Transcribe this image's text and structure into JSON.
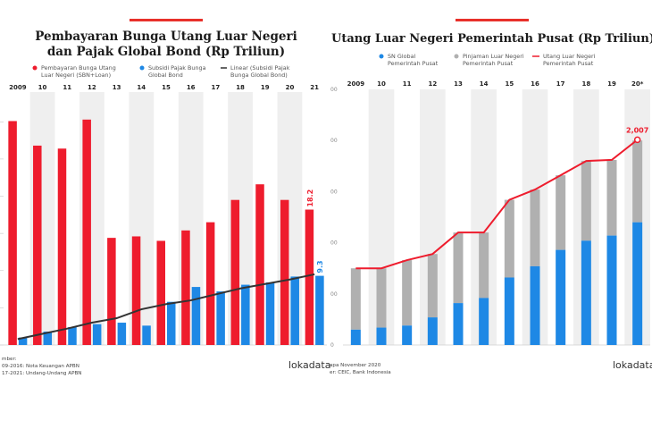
{
  "colors": {
    "red": "#ee1c2d",
    "blue": "#1e88e5",
    "gray": "#b0b0b0",
    "dark": "#333333",
    "band": "#efefef",
    "accent": "#e8302a"
  },
  "left": {
    "title_line1": "Pembayaran Bunga Utang Luar Negeri",
    "title_line2": "dan Pajak Global Bond (Rp Triliun)",
    "legend": [
      {
        "l1": "Pembayaran Bunga Utang",
        "l2": "Luar Negeri (SBN+Loan)",
        "icon": "red-dot-icon"
      },
      {
        "l1": "Subsidi Pajak Bunga",
        "l2": "Global Bond",
        "icon": "blue-dot-icon"
      },
      {
        "l1": "Linear (Subsidi Pajak",
        "l2": "Bunga Global Bond)",
        "icon": "line-icon"
      }
    ],
    "source_lines": [
      "mber:",
      "09-2016: Nota Keuangan APBN",
      "17-2021: Undang-Undang APBN"
    ],
    "logo": "lokadata",
    "end_label_red": "18.2",
    "end_label_blue": "9.3"
  },
  "right": {
    "title": "Utang Luar Negeri Pemerintah Pusat (Rp Triliun)",
    "legend": [
      {
        "l1": "SN Global",
        "l2": "Pemerintah Pusat",
        "icon": "blue-dot-icon"
      },
      {
        "l1": "Pinjaman Luar Negeri",
        "l2": "Pemerintah Pusat",
        "icon": "gray-dot-icon"
      },
      {
        "l1": "Utang Luar Negeri",
        "l2": "Pemerintah Pusat",
        "icon": "red-line-icon"
      }
    ],
    "source_lines": [
      "apa November 2020",
      "er: CEIC, Bank Indonesia"
    ],
    "logo": "lokadata",
    "end_label": "2,007",
    "y_ticks": [
      "00",
      "00",
      "00",
      "00",
      "00",
      "0"
    ]
  },
  "chart_data": [
    {
      "type": "bar",
      "title": "Pembayaran Bunga Utang Luar Negeri dan Pajak Global Bond (Rp Triliun)",
      "categories": [
        "2009",
        "10",
        "11",
        "12",
        "13",
        "14",
        "15",
        "16",
        "17",
        "18",
        "19",
        "20",
        "21"
      ],
      "ylim": [
        0,
        34
      ],
      "series": [
        {
          "name": "Pembayaran Bunga Utang Luar Negeri (SBN+Loan)",
          "values": [
            30.1,
            26.8,
            26.4,
            30.3,
            14.4,
            14.6,
            14.0,
            15.4,
            16.5,
            19.5,
            21.6,
            19.5,
            18.2
          ]
        },
        {
          "name": "Subsidi Pajak Bunga Global Bond",
          "values": [
            1.0,
            1.8,
            2.4,
            2.8,
            3.0,
            2.6,
            5.8,
            7.8,
            7.2,
            8.1,
            8.4,
            9.2,
            9.3
          ]
        },
        {
          "name": "Linear (Subsidi Pajak Bunga Global Bond)",
          "type": "line",
          "values": [
            0.8,
            1.5,
            2.2,
            3.0,
            3.6,
            4.8,
            5.5,
            6.0,
            6.8,
            7.6,
            8.2,
            8.8,
            9.5
          ]
        }
      ]
    },
    {
      "type": "bar",
      "title": "Utang Luar Negeri Pemerintah Pusat (Rp Triliun)",
      "categories": [
        "2009",
        "10",
        "11",
        "12",
        "13",
        "14",
        "15",
        "16",
        "17",
        "18",
        "19",
        "20*"
      ],
      "ylim": [
        0,
        2500
      ],
      "series": [
        {
          "name": "SN Global Pemerintah Pusat",
          "values": [
            150,
            170,
            190,
            270,
            410,
            460,
            660,
            770,
            930,
            1020,
            1070,
            1200
          ]
        },
        {
          "name": "Pinjaman Luar Negeri Pemerintah Pusat",
          "values": [
            600,
            580,
            640,
            620,
            690,
            640,
            760,
            750,
            730,
            780,
            740,
            800
          ]
        },
        {
          "name": "Utang Luar Negeri Pemerintah Pusat",
          "type": "line",
          "values": [
            750,
            750,
            830,
            890,
            1100,
            1100,
            1420,
            1520,
            1660,
            1800,
            1810,
            2007
          ]
        }
      ]
    }
  ]
}
